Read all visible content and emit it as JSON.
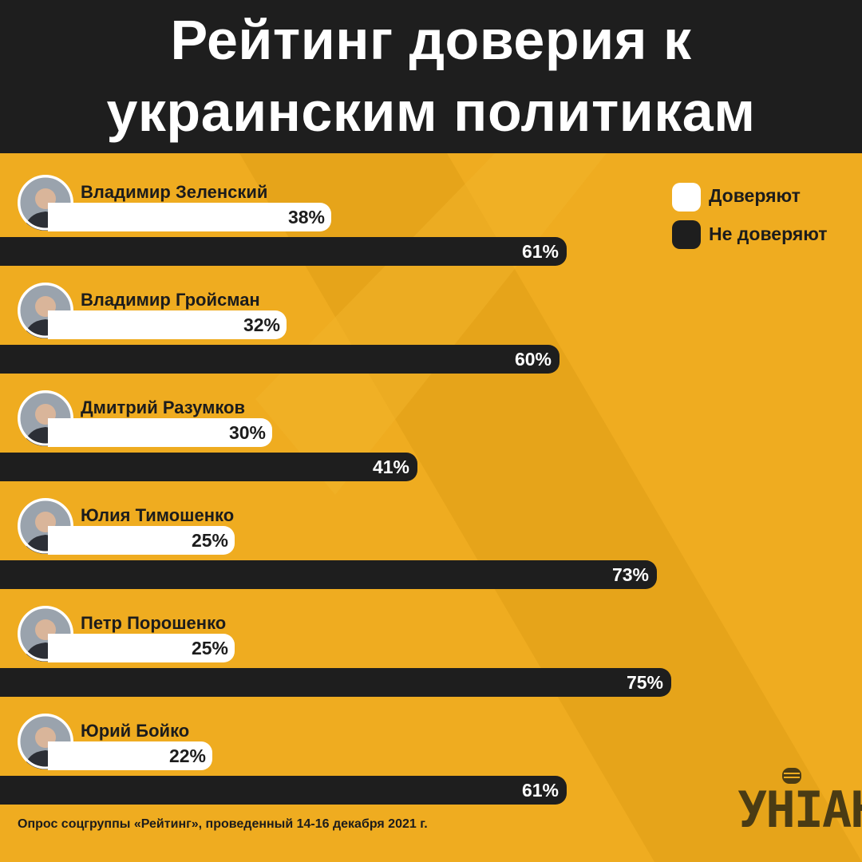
{
  "header": {
    "title_line_1": "Рейтинг доверия к",
    "title_line_2": "украинским политикам"
  },
  "legend": {
    "trust_label": "Доверяют",
    "distrust_label": "Не доверяют"
  },
  "colors": {
    "background": "#efac20",
    "background_stripe": "#e6a41a",
    "header": "#1e1e1e",
    "trust": "#ffffff",
    "distrust": "#1e1e1e",
    "logo": "#4a3b14"
  },
  "chart_data": {
    "type": "bar",
    "orientation": "horizontal",
    "title": "Рейтинг доверия к украинским политикам",
    "categories": [
      "Владимир Зеленский",
      "Владимир Гройсман",
      "Дмитрий Разумков",
      "Юлия Тимошенко",
      "Петр Порошенко",
      "Юрий Бойко"
    ],
    "series": [
      {
        "name": "Доверяют",
        "values": [
          38,
          32,
          30,
          25,
          25,
          22
        ],
        "labels": [
          "38%",
          "32%",
          "30%",
          "25%",
          "25%",
          "22%"
        ]
      },
      {
        "name": "Не доверяют",
        "values": [
          61,
          60,
          41,
          73,
          75,
          61
        ],
        "labels": [
          "61%",
          "60%",
          "41%",
          "73%",
          "75%",
          "61%"
        ]
      }
    ],
    "unit": "%",
    "legend_position": "top-right",
    "grid": false
  },
  "footnote": "Опрос соцгруппы «Рейтинг», проведенный 14-16 декабря 2021 г.",
  "logo": {
    "text": "УНІАН",
    "icon": "microphone-icon"
  },
  "avatar_icon": "person-portrait-icon"
}
